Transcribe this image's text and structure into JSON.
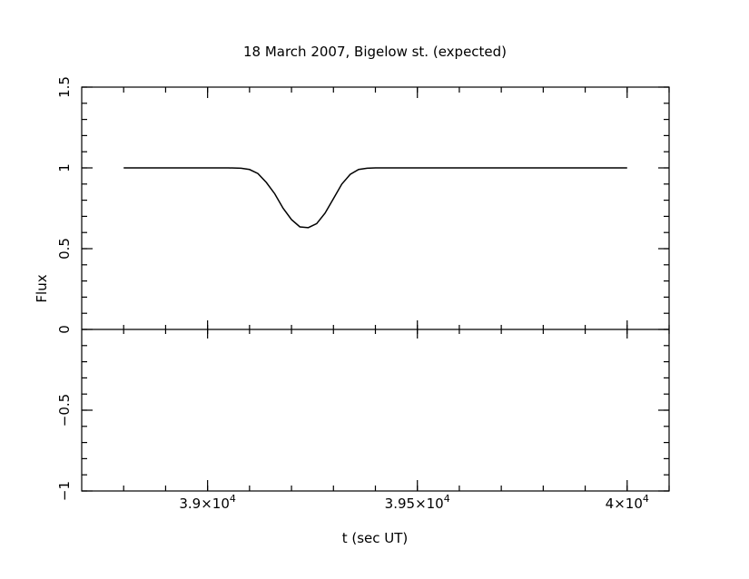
{
  "chart_data": {
    "type": "line",
    "title": "18 March 2007, Bigelow st. (expected)",
    "xlabel": "t (sec UT)",
    "ylabel": "Flux",
    "xlim": [
      38700,
      40100
    ],
    "ylim": [
      -1,
      1.5
    ],
    "x_ticks": [
      {
        "value": 39000,
        "label": "3.9×10",
        "exp": "4"
      },
      {
        "value": 39500,
        "label": "3.95×10",
        "exp": "4"
      },
      {
        "value": 40000,
        "label": "4×10",
        "exp": "4"
      }
    ],
    "y_ticks": [
      {
        "value": 1.5,
        "label": "1.5"
      },
      {
        "value": 1,
        "label": "1"
      },
      {
        "value": 0.5,
        "label": "0.5"
      },
      {
        "value": 0,
        "label": "0"
      },
      {
        "value": -0.5,
        "label": "−0.5"
      },
      {
        "value": -1,
        "label": "−1"
      }
    ],
    "zero_line": 0,
    "series": [
      {
        "x": [
          38800,
          38900,
          39000,
          39050,
          39080,
          39100,
          39120,
          39140,
          39160,
          39180,
          39200,
          39220,
          39240,
          39260,
          39280,
          39300,
          39320,
          39340,
          39360,
          39380,
          39400,
          39450,
          39500,
          39600,
          39700,
          39800,
          39900,
          40000
        ],
        "y": [
          1.0,
          1.0,
          1.0,
          1.0,
          0.998,
          0.99,
          0.965,
          0.91,
          0.84,
          0.75,
          0.68,
          0.635,
          0.63,
          0.655,
          0.72,
          0.81,
          0.9,
          0.96,
          0.99,
          0.998,
          1.0,
          1.0,
          1.0,
          1.0,
          1.0,
          1.0,
          1.0,
          1.0
        ]
      }
    ]
  }
}
